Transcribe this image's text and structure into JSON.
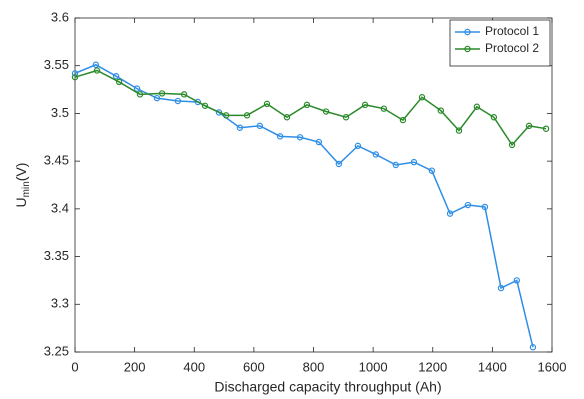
{
  "chart_data": {
    "type": "line",
    "xlabel": "Discharged capacity throughput (Ah)",
    "ylabel": {
      "text": "U",
      "subscript": "min",
      "unit": "(V)"
    },
    "xlim": [
      0,
      1600
    ],
    "xticks": [
      0,
      200,
      400,
      600,
      800,
      1000,
      1200,
      1400,
      1600
    ],
    "ylim": [
      3.25,
      3.6
    ],
    "yticks": [
      3.25,
      3.3,
      3.35,
      3.4,
      3.45,
      3.5,
      3.55,
      3.6
    ],
    "legend": "upper right",
    "series": [
      {
        "name": "Protocol 1",
        "color": "#2e8ee6",
        "x": [
          0,
          70,
          138,
          208,
          275,
          345,
          412,
          483,
          553,
          620,
          688,
          755,
          818,
          885,
          949,
          1009,
          1076,
          1137,
          1197,
          1258,
          1318,
          1375,
          1429,
          1482,
          1536
        ],
        "values": [
          3.542,
          3.551,
          3.539,
          3.526,
          3.516,
          3.513,
          3.512,
          3.501,
          3.485,
          3.487,
          3.476,
          3.475,
          3.47,
          3.447,
          3.466,
          3.457,
          3.446,
          3.449,
          3.44,
          3.395,
          3.404,
          3.402,
          3.317,
          3.325,
          3.255
        ]
      },
      {
        "name": "Protocol 2",
        "color": "#2a8a2a",
        "x": [
          0,
          74,
          148,
          218,
          292,
          366,
          436,
          507,
          577,
          644,
          711,
          778,
          842,
          909,
          973,
          1036,
          1100,
          1164,
          1227,
          1288,
          1348,
          1405,
          1466,
          1523,
          1580
        ],
        "values": [
          3.538,
          3.545,
          3.533,
          3.52,
          3.521,
          3.52,
          3.508,
          3.498,
          3.498,
          3.51,
          3.496,
          3.509,
          3.502,
          3.496,
          3.509,
          3.505,
          3.493,
          3.517,
          3.503,
          3.482,
          3.507,
          3.496,
          3.467,
          3.487,
          3.484
        ]
      }
    ]
  }
}
